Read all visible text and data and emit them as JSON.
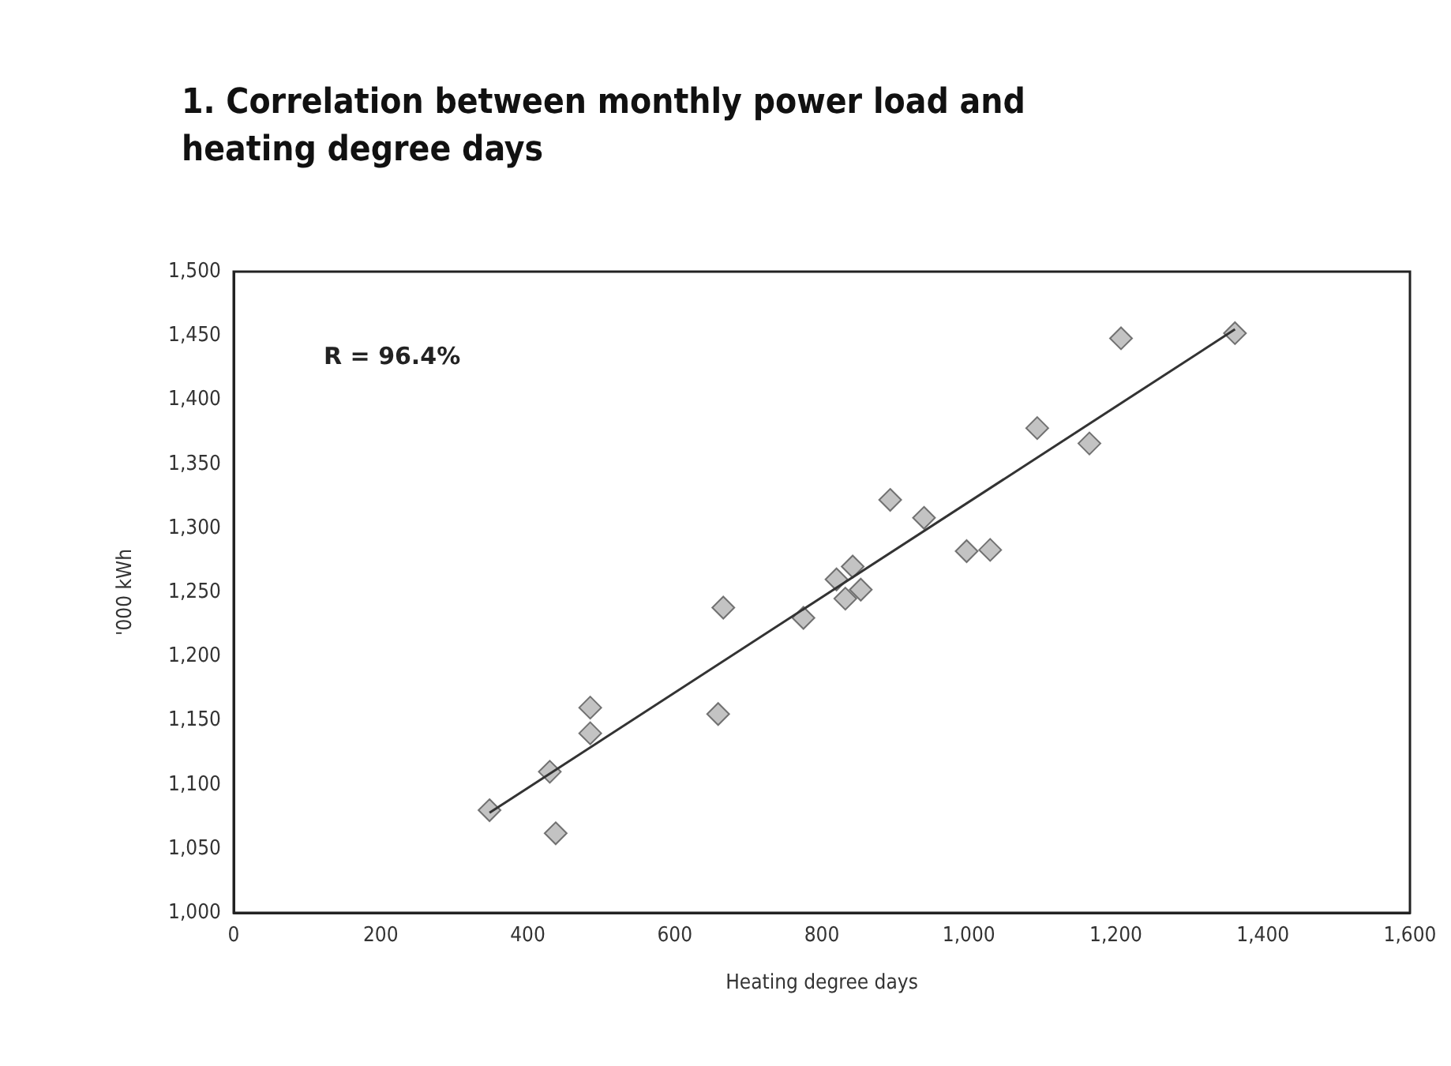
{
  "chart_data": {
    "type": "scatter",
    "title": "1. Correlation between monthly power load and heating degree days",
    "xlabel": "Heating degree days",
    "ylabel": "'000 kWh",
    "annotations": [
      "R = 96.4%"
    ],
    "xlim": [
      0,
      1600
    ],
    "xticks": [
      0,
      200,
      400,
      600,
      800,
      {
        "value": 1000,
        "label": "1,000"
      },
      {
        "value": 1200,
        "label": "1,200"
      },
      {
        "value": 1400,
        "label": "1,400"
      },
      {
        "value": 1600,
        "label": "1,600"
      }
    ],
    "ylim": [
      1000,
      1500
    ],
    "yticks": [
      {
        "value": 1000,
        "label": "1,000"
      },
      {
        "value": 1050,
        "label": "1,050"
      },
      {
        "value": 1100,
        "label": "1,100"
      },
      {
        "value": 1150,
        "label": "1,150"
      },
      {
        "value": 1200,
        "label": "1,200"
      },
      {
        "value": 1250,
        "label": "1,250"
      },
      {
        "value": 1300,
        "label": "1,300"
      },
      {
        "value": 1350,
        "label": "1,350"
      },
      {
        "value": 1400,
        "label": "1,400"
      },
      {
        "value": 1450,
        "label": "1,450"
      },
      {
        "value": 1500,
        "label": "1,500"
      }
    ],
    "grid": false,
    "marker": "diamond",
    "series": [
      {
        "color": "#b4b4b4",
        "x": [
          348,
          430,
          438,
          485,
          485,
          659,
          666,
          775,
          820,
          832,
          853,
          842,
          893,
          939,
          997,
          1029,
          1093,
          1164,
          1207,
          1362
        ],
        "values": [
          1080,
          1110,
          1062,
          1160,
          1140,
          1155,
          1238,
          1230,
          1260,
          1245,
          1252,
          1270,
          1322,
          1308,
          1282,
          1283,
          1378,
          1366,
          1448,
          1452
        ]
      },
      {
        "type": "line",
        "color": "#333333",
        "marker": "none",
        "x": [
          348,
          1362
        ],
        "values": [
          1078,
          1455
        ]
      }
    ]
  }
}
